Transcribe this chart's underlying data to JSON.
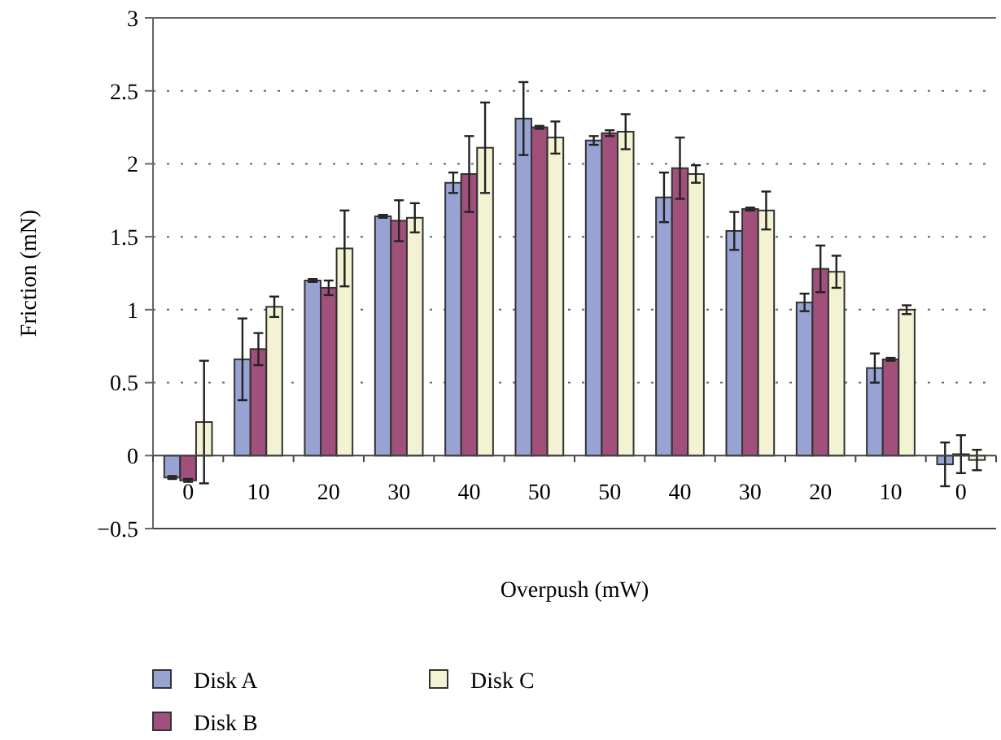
{
  "chart_data": {
    "type": "bar",
    "xlabel": "Overpush (mW)",
    "ylabel": "Friction (mN)",
    "categories": [
      "0",
      "10",
      "20",
      "30",
      "40",
      "50",
      "50",
      "40",
      "30",
      "20",
      "10",
      "0"
    ],
    "series": [
      {
        "name": "Disk A",
        "color": "#99a3d3",
        "values": [
          -0.15,
          0.66,
          1.2,
          1.64,
          1.87,
          2.31,
          2.16,
          1.77,
          1.54,
          1.05,
          0.6,
          -0.06
        ],
        "errors": [
          0.01,
          0.28,
          0.01,
          0.01,
          0.07,
          0.25,
          0.03,
          0.17,
          0.13,
          0.06,
          0.1,
          0.15
        ]
      },
      {
        "name": "Disk B",
        "color": "#a0507a",
        "values": [
          -0.17,
          0.73,
          1.15,
          1.61,
          1.93,
          2.25,
          2.21,
          1.97,
          1.69,
          1.28,
          0.66,
          0.01
        ],
        "errors": [
          0.01,
          0.11,
          0.05,
          0.14,
          0.26,
          0.01,
          0.02,
          0.21,
          0.01,
          0.16,
          0.01,
          0.13
        ]
      },
      {
        "name": "Disk C",
        "color": "#f3f3d3",
        "values": [
          0.23,
          1.02,
          1.42,
          1.63,
          2.11,
          2.18,
          2.22,
          1.93,
          1.68,
          1.26,
          1.0,
          -0.03
        ],
        "errors": [
          0.42,
          0.07,
          0.26,
          0.1,
          0.31,
          0.11,
          0.12,
          0.06,
          0.13,
          0.11,
          0.03,
          0.07
        ]
      }
    ],
    "ylim": [
      -0.5,
      3
    ],
    "yticks": [
      {
        "value": -0.5,
        "label": "−0.5"
      },
      0,
      0.5,
      1,
      1.5,
      2,
      2.5,
      3
    ],
    "grid": "y",
    "legend": "bottom"
  }
}
